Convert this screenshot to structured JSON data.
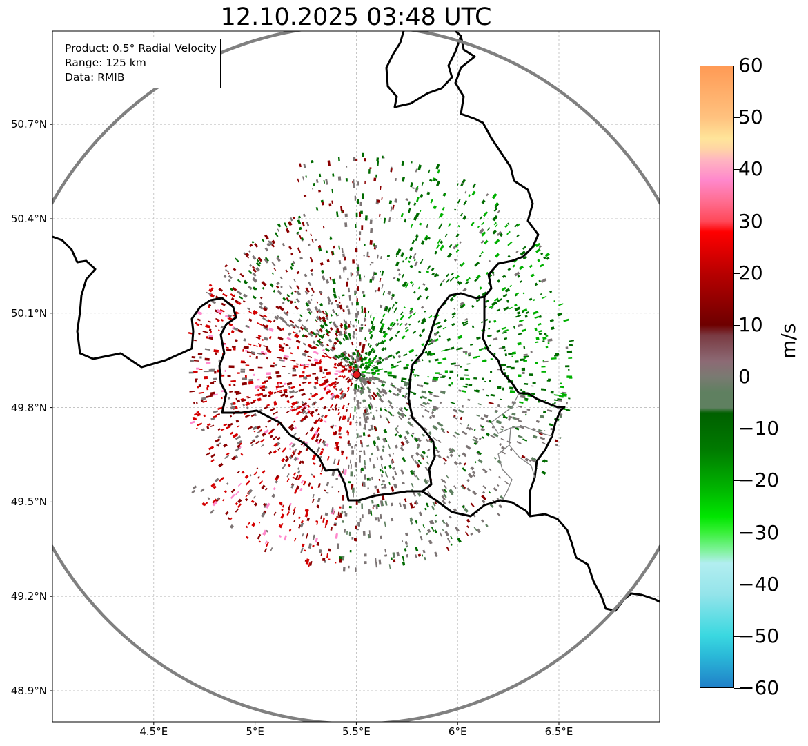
{
  "title": "12.10.2025 03:48 UTC",
  "info": {
    "product": "Product: 0.5° Radial Velocity",
    "range": "Range: 125 km",
    "source": "Data: RMIB"
  },
  "axes": {
    "x_ticks": [
      "4.5°E",
      "5°E",
      "5.5°E",
      "6°E",
      "6.5°E"
    ],
    "y_ticks": [
      "50.7°N",
      "50.4°N",
      "50.1°N",
      "49.8°N",
      "49.5°N",
      "49.2°N",
      "48.9°N"
    ],
    "lon_values": [
      4.5,
      5.0,
      5.5,
      6.0,
      6.5
    ],
    "lat_values": [
      50.7,
      50.4,
      50.1,
      49.8,
      49.5,
      49.2,
      48.9
    ],
    "lon_range": [
      4.0,
      7.0
    ],
    "lat_range": [
      48.8,
      50.98
    ]
  },
  "radar": {
    "site_lon": 5.505,
    "site_lat": 49.914,
    "range_km": 125,
    "site_color": "#e41a1c"
  },
  "colorbar": {
    "unit": "m/s",
    "vmin": -60,
    "vmax": 60,
    "tick_values": [
      60,
      50,
      40,
      30,
      20,
      10,
      0,
      -10,
      -20,
      -30,
      -40,
      -50,
      -60
    ],
    "tick_labels": [
      "60",
      "50",
      "40",
      "30",
      "20",
      "10",
      "0",
      "−10",
      "−20",
      "−30",
      "−40",
      "−50",
      "−60"
    ],
    "stops": [
      {
        "v": 60,
        "color": "#ff9a55"
      },
      {
        "v": 50,
        "color": "#ffc27f"
      },
      {
        "v": 46,
        "color": "#ffe59a"
      },
      {
        "v": 44,
        "color": "#ffd4a5"
      },
      {
        "v": 42,
        "color": "#ffb6c0"
      },
      {
        "v": 38,
        "color": "#ff88cc"
      },
      {
        "v": 34,
        "color": "#ff6e92"
      },
      {
        "v": 30,
        "color": "#ff4858"
      },
      {
        "v": 28,
        "color": "#ff0000"
      },
      {
        "v": 20,
        "color": "#b80000"
      },
      {
        "v": 10,
        "color": "#6e0000"
      },
      {
        "v": 8,
        "color": "#7a3a42"
      },
      {
        "v": 3,
        "color": "#8c6a74"
      },
      {
        "v": 0,
        "color": "#7a7a72"
      },
      {
        "v": -3,
        "color": "#5f8060"
      },
      {
        "v": -6,
        "color": "#5f8060"
      },
      {
        "v": -7,
        "color": "#006000"
      },
      {
        "v": -14,
        "color": "#007a00"
      },
      {
        "v": -22,
        "color": "#00b800"
      },
      {
        "v": -27,
        "color": "#00e600"
      },
      {
        "v": -30,
        "color": "#38f038"
      },
      {
        "v": -34,
        "color": "#88f2a8"
      },
      {
        "v": -36,
        "color": "#b2eef0"
      },
      {
        "v": -42,
        "color": "#94e4ea"
      },
      {
        "v": -50,
        "color": "#3ad8e0"
      },
      {
        "v": -54,
        "color": "#2ab8d8"
      },
      {
        "v": -60,
        "color": "#2080c8"
      }
    ]
  },
  "colors": {
    "range_ring": "#808080",
    "border": "#000000",
    "subborder": "#808080",
    "grid": "#b0b0b0",
    "approach": "#006a00",
    "approach_light": "#00b000",
    "recede": "#8a0000",
    "recede_bright": "#d40000",
    "near_zero": "#7c7474"
  }
}
